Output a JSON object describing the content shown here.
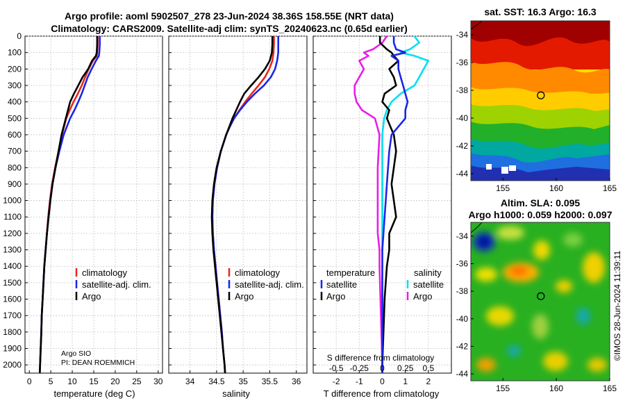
{
  "header": {
    "title_line1": "Argo profile: aoml 5902507_278 23-Jun-2024 38.36S 158.55E (NRT data)",
    "title_line2": "Climatology: CARS2009. Satellite-adj clim: synTS_20240623.nc (0.65d earlier)"
  },
  "colors": {
    "climatology": "#e8261c",
    "satellite": "#1a26e6",
    "argo": "#000000",
    "sat_temp_diff": "#00e0f0",
    "argo_sal_diff": "#e81ee8"
  },
  "depth_axis": {
    "ylim": [
      0,
      2050
    ],
    "ticks": [
      0,
      100,
      200,
      300,
      400,
      500,
      600,
      700,
      800,
      900,
      1000,
      1100,
      1200,
      1300,
      1400,
      1500,
      1600,
      1700,
      1800,
      1900,
      2000
    ]
  },
  "chart_data": [
    {
      "type": "line",
      "id": "temperature",
      "xlabel": "temperature (deg C)",
      "xlim": [
        -1,
        31
      ],
      "xticks": [
        0,
        5,
        10,
        15,
        20,
        25,
        30
      ],
      "depth": [
        0,
        50,
        100,
        120,
        150,
        200,
        250,
        300,
        350,
        400,
        450,
        500,
        600,
        700,
        800,
        900,
        1000,
        1100,
        1200,
        1300,
        1400,
        1500,
        1600,
        1700,
        1800,
        1900,
        2000,
        2050
      ],
      "series": [
        {
          "name": "climatology",
          "values": [
            15.9,
            15.9,
            15.8,
            15.7,
            14.8,
            13.8,
            13.0,
            12.2,
            11.3,
            10.3,
            9.4,
            8.6,
            7.6,
            6.8,
            6.0,
            5.3,
            4.8,
            4.4,
            4.1,
            3.8,
            3.5,
            3.3,
            3.1,
            2.9,
            2.8,
            2.65,
            2.5,
            2.45
          ]
        },
        {
          "name": "satellite-adj. clim.",
          "values": [
            16.4,
            16.4,
            16.3,
            16.2,
            15.5,
            14.5,
            13.6,
            12.9,
            12.2,
            11.4,
            10.5,
            9.5,
            8.0,
            7.0,
            6.1,
            5.4,
            4.9,
            4.5,
            4.1,
            3.8,
            3.5,
            3.3,
            3.1,
            2.9,
            2.8,
            2.65,
            2.5,
            2.45
          ]
        },
        {
          "name": "Argo",
          "values": [
            15.8,
            15.8,
            15.7,
            15.5,
            14.6,
            13.7,
            12.4,
            11.4,
            10.4,
            9.5,
            9.0,
            8.5,
            7.5,
            6.8,
            6.1,
            5.4,
            4.9,
            4.5,
            4.1,
            3.8,
            3.5,
            3.3,
            3.1,
            2.9,
            2.8,
            2.65,
            2.5,
            2.45
          ]
        }
      ],
      "legend": [
        "climatology",
        "satellite-adj. clim.",
        "Argo"
      ],
      "annotation": [
        "Argo SIO",
        "PI: DEAN ROEMMICH"
      ]
    },
    {
      "type": "line",
      "id": "salinity",
      "xlabel": "salinity",
      "xlim": [
        33.6,
        36.2
      ],
      "xticks": [
        34,
        34.5,
        35,
        35.5,
        36
      ],
      "depth": [
        0,
        50,
        100,
        150,
        200,
        250,
        300,
        350,
        400,
        450,
        500,
        550,
        600,
        700,
        800,
        900,
        1000,
        1100,
        1200,
        1300,
        1400,
        1500,
        1600,
        1700,
        1800,
        1900,
        2000,
        2050
      ],
      "series": [
        {
          "name": "climatology",
          "values": [
            35.58,
            35.58,
            35.57,
            35.55,
            35.49,
            35.41,
            35.29,
            35.16,
            35.04,
            34.93,
            34.83,
            34.75,
            34.68,
            34.58,
            34.51,
            34.46,
            34.43,
            34.42,
            34.43,
            34.45,
            34.48,
            34.51,
            34.54,
            34.57,
            34.6,
            34.62,
            34.65,
            34.66
          ]
        },
        {
          "name": "satellite-adj. clim.",
          "values": [
            35.66,
            35.66,
            35.66,
            35.64,
            35.6,
            35.52,
            35.39,
            35.22,
            35.07,
            34.94,
            34.83,
            34.75,
            34.68,
            34.58,
            34.51,
            34.46,
            34.43,
            34.42,
            34.43,
            34.45,
            34.48,
            34.51,
            34.54,
            34.57,
            34.6,
            34.62,
            34.65,
            34.66
          ]
        },
        {
          "name": "Argo",
          "values": [
            35.55,
            35.55,
            35.54,
            35.5,
            35.41,
            35.29,
            35.15,
            35.02,
            34.94,
            34.87,
            34.8,
            34.74,
            34.68,
            34.58,
            34.5,
            34.45,
            34.42,
            34.41,
            34.42,
            34.44,
            34.47,
            34.5,
            34.53,
            34.56,
            34.59,
            34.62,
            34.65,
            34.66
          ]
        }
      ],
      "legend": [
        "climatology",
        "satellite-adj. clim.",
        "Argo"
      ]
    },
    {
      "type": "line",
      "id": "differences",
      "xlabel": "T difference from climatology",
      "xlim": [
        -3,
        3
      ],
      "xticks": [
        -2,
        -1,
        0,
        1,
        2
      ],
      "xlabel_top": "S difference from climatology",
      "xticks_top": [
        "-0.5",
        "-0.25",
        "0",
        "0.25",
        "0.5"
      ],
      "depth": [
        0,
        40,
        80,
        100,
        120,
        150,
        200,
        250,
        300,
        350,
        400,
        450,
        500,
        600,
        700,
        800,
        900,
        1000,
        1100,
        1200,
        1300,
        1400,
        1600,
        1800,
        2000,
        2050
      ],
      "series": [
        {
          "name": "temperature satellite",
          "values": [
            0.5,
            0.5,
            0.6,
            1.0,
            0.4,
            0.7,
            0.7,
            0.8,
            0.9,
            1.0,
            1.1,
            1.0,
            1.0,
            0.4,
            0.3,
            0.25,
            0.2,
            0.15,
            0.1,
            0.05,
            0.0,
            0.0,
            0.0,
            0.0,
            0.0,
            0.0
          ]
        },
        {
          "name": "temperature Argo",
          "values": [
            -0.1,
            -0.1,
            0.2,
            0.4,
            0.5,
            0.7,
            0.3,
            0.5,
            0.6,
            0.1,
            0.0,
            0.3,
            0.2,
            0.5,
            0.6,
            0.5,
            0.4,
            0.5,
            0.6,
            0.3,
            0.3,
            0.2,
            0.1,
            0.05,
            0.0,
            0.0
          ]
        },
        {
          "name": "salinity satellite",
          "values": [
            0.35,
            0.4,
            0.3,
            0.2,
            0.35,
            0.5,
            0.45,
            0.4,
            0.35,
            0.2,
            0.1,
            0.05,
            0.02,
            0.0,
            0.0,
            0.0,
            0.0,
            0.0,
            0.0,
            0.0,
            0.0,
            0.0,
            0.0,
            0.0,
            0.0,
            0.0
          ]
        },
        {
          "name": "salinity Argo",
          "values": [
            0.05,
            0.0,
            -0.1,
            -0.2,
            -0.15,
            -0.25,
            -0.2,
            -0.25,
            -0.3,
            -0.3,
            -0.28,
            -0.22,
            -0.08,
            -0.03,
            -0.04,
            -0.05,
            -0.05,
            -0.05,
            -0.05,
            -0.05,
            -0.03,
            -0.03,
            -0.02,
            -0.01,
            0.0,
            0.0
          ]
        }
      ],
      "legend_temperature_title": "temperature",
      "legend_salinity_title": "salinity",
      "legend_temperature": [
        "satellite",
        "Argo"
      ],
      "legend_salinity": [
        "satellite",
        "Argo"
      ]
    },
    {
      "type": "heatmap",
      "id": "sst_map",
      "title": "sat. SST: 16.3 Argo: 16.3",
      "xticks": [
        155,
        160,
        165
      ],
      "yticks": [
        -34,
        -36,
        -38,
        -40,
        -42,
        -44
      ],
      "xlim": [
        152,
        165
      ],
      "ylim": [
        -44.5,
        -33
      ]
    },
    {
      "type": "heatmap",
      "id": "sla_map",
      "title_line1": "Altim. SLA: 0.095",
      "title_line2": "Argo h1000: 0.059 h2000: 0.097",
      "xticks": [
        155,
        160,
        165
      ],
      "yticks": [
        -34,
        -36,
        -38,
        -40,
        -42,
        -44
      ],
      "xlim": [
        152,
        165
      ],
      "ylim": [
        -44.5,
        -33
      ]
    }
  ],
  "credit": "©IMOS 28-Jun-2024 11:39:11"
}
